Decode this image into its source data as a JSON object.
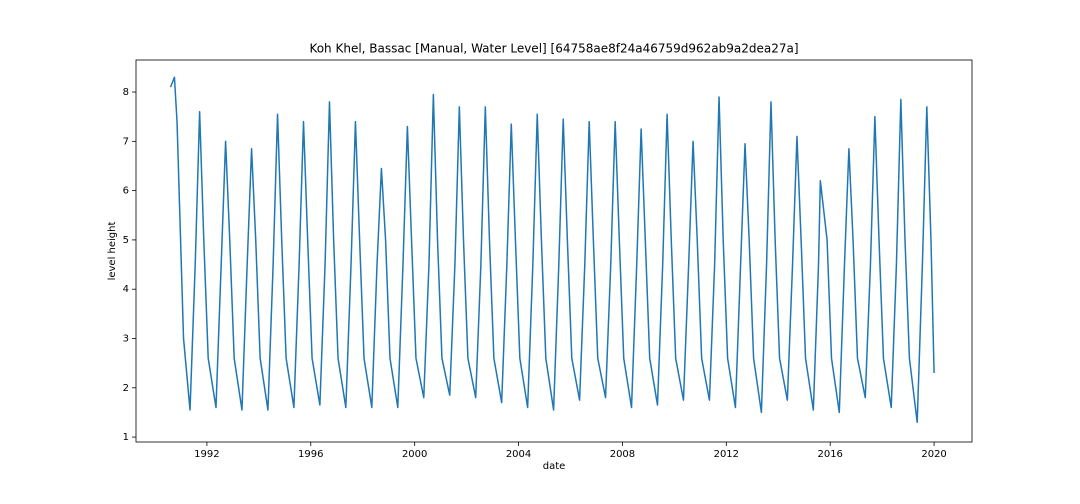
{
  "chart_data": {
    "type": "line",
    "title": "Koh Khel, Bassac [Manual, Water Level] [64758ae8f24a46759d962ab9a2dea27a]",
    "xlabel": "date",
    "ylabel": "level height",
    "color": "#1f77b4",
    "xlim": [
      1989.27,
      2021.46
    ],
    "ylim": [
      0.9,
      8.65
    ],
    "xticks": [
      1992,
      1996,
      2000,
      2004,
      2008,
      2012,
      2016,
      2020
    ],
    "yticks": [
      1,
      2,
      3,
      4,
      5,
      6,
      7,
      8
    ],
    "x": [
      1990.6,
      1990.75,
      1990.85,
      1991.1,
      1991.35,
      1991.55,
      1991.72,
      1991.88,
      1992.05,
      1992.35,
      1992.55,
      1992.72,
      1992.88,
      1993.05,
      1993.35,
      1993.55,
      1993.72,
      1993.88,
      1994.05,
      1994.35,
      1994.55,
      1994.72,
      1994.88,
      1995.05,
      1995.35,
      1995.55,
      1995.72,
      1995.88,
      1996.05,
      1996.35,
      1996.55,
      1996.72,
      1996.88,
      1997.05,
      1997.35,
      1997.55,
      1997.72,
      1997.88,
      1998.05,
      1998.35,
      1998.55,
      1998.72,
      1998.88,
      1999.05,
      1999.35,
      1999.55,
      1999.72,
      1999.88,
      2000.05,
      2000.35,
      2000.55,
      2000.72,
      2000.88,
      2001.05,
      2001.35,
      2001.55,
      2001.72,
      2001.88,
      2002.05,
      2002.35,
      2002.55,
      2002.72,
      2002.88,
      2003.05,
      2003.35,
      2003.55,
      2003.72,
      2003.88,
      2004.05,
      2004.35,
      2004.55,
      2004.72,
      2004.88,
      2005.05,
      2005.35,
      2005.55,
      2005.72,
      2005.88,
      2006.05,
      2006.35,
      2006.55,
      2006.72,
      2006.88,
      2007.05,
      2007.35,
      2007.55,
      2007.72,
      2007.88,
      2008.05,
      2008.35,
      2008.55,
      2008.72,
      2008.88,
      2009.05,
      2009.35,
      2009.55,
      2009.72,
      2009.88,
      2010.05,
      2010.35,
      2010.55,
      2010.72,
      2010.88,
      2011.05,
      2011.35,
      2011.55,
      2011.72,
      2011.88,
      2012.05,
      2012.35,
      2012.55,
      2012.72,
      2012.88,
      2013.05,
      2013.35,
      2013.55,
      2013.72,
      2013.88,
      2014.05,
      2014.35,
      2014.55,
      2014.72,
      2014.88,
      2015.05,
      2015.35,
      2015.55,
      2015.62,
      2015.88,
      2016.05,
      2016.35,
      2016.55,
      2016.72,
      2016.88,
      2017.05,
      2017.35,
      2017.55,
      2017.72,
      2017.88,
      2018.05,
      2018.35,
      2018.55,
      2018.72,
      2018.88,
      2019.05,
      2019.35,
      2019.55,
      2019.72,
      2019.88,
      2020.0
    ],
    "values": [
      8.1,
      8.3,
      7.4,
      3.0,
      1.55,
      4.5,
      7.6,
      5.0,
      2.6,
      1.6,
      4.5,
      7.0,
      5.0,
      2.6,
      1.55,
      4.5,
      6.85,
      5.0,
      2.6,
      1.55,
      4.5,
      7.55,
      5.0,
      2.6,
      1.6,
      4.5,
      7.4,
      5.0,
      2.6,
      1.65,
      4.5,
      7.8,
      5.0,
      2.6,
      1.6,
      4.5,
      7.4,
      5.0,
      2.6,
      1.6,
      4.5,
      6.45,
      5.0,
      2.6,
      1.6,
      4.5,
      7.3,
      5.0,
      2.6,
      1.8,
      4.5,
      7.95,
      5.0,
      2.6,
      1.85,
      4.5,
      7.7,
      5.0,
      2.6,
      1.8,
      4.5,
      7.7,
      5.0,
      2.6,
      1.7,
      4.5,
      7.35,
      5.0,
      2.6,
      1.6,
      4.5,
      7.55,
      5.0,
      2.6,
      1.55,
      4.5,
      7.45,
      5.0,
      2.6,
      1.75,
      4.5,
      7.4,
      5.0,
      2.6,
      1.8,
      4.5,
      7.4,
      5.0,
      2.6,
      1.6,
      4.5,
      7.25,
      5.0,
      2.6,
      1.65,
      4.5,
      7.55,
      5.0,
      2.6,
      1.75,
      4.5,
      7.0,
      5.0,
      2.6,
      1.75,
      4.5,
      7.9,
      5.0,
      2.6,
      1.6,
      4.5,
      6.95,
      5.0,
      2.6,
      1.5,
      4.5,
      7.8,
      5.0,
      2.6,
      1.75,
      4.5,
      7.1,
      5.0,
      2.6,
      1.55,
      4.5,
      6.2,
      5.0,
      2.6,
      1.5,
      4.5,
      6.85,
      5.0,
      2.6,
      1.8,
      4.5,
      7.5,
      5.0,
      2.6,
      1.6,
      4.5,
      7.85,
      5.0,
      2.6,
      1.3,
      4.5,
      7.7,
      5.0,
      2.3
    ]
  }
}
